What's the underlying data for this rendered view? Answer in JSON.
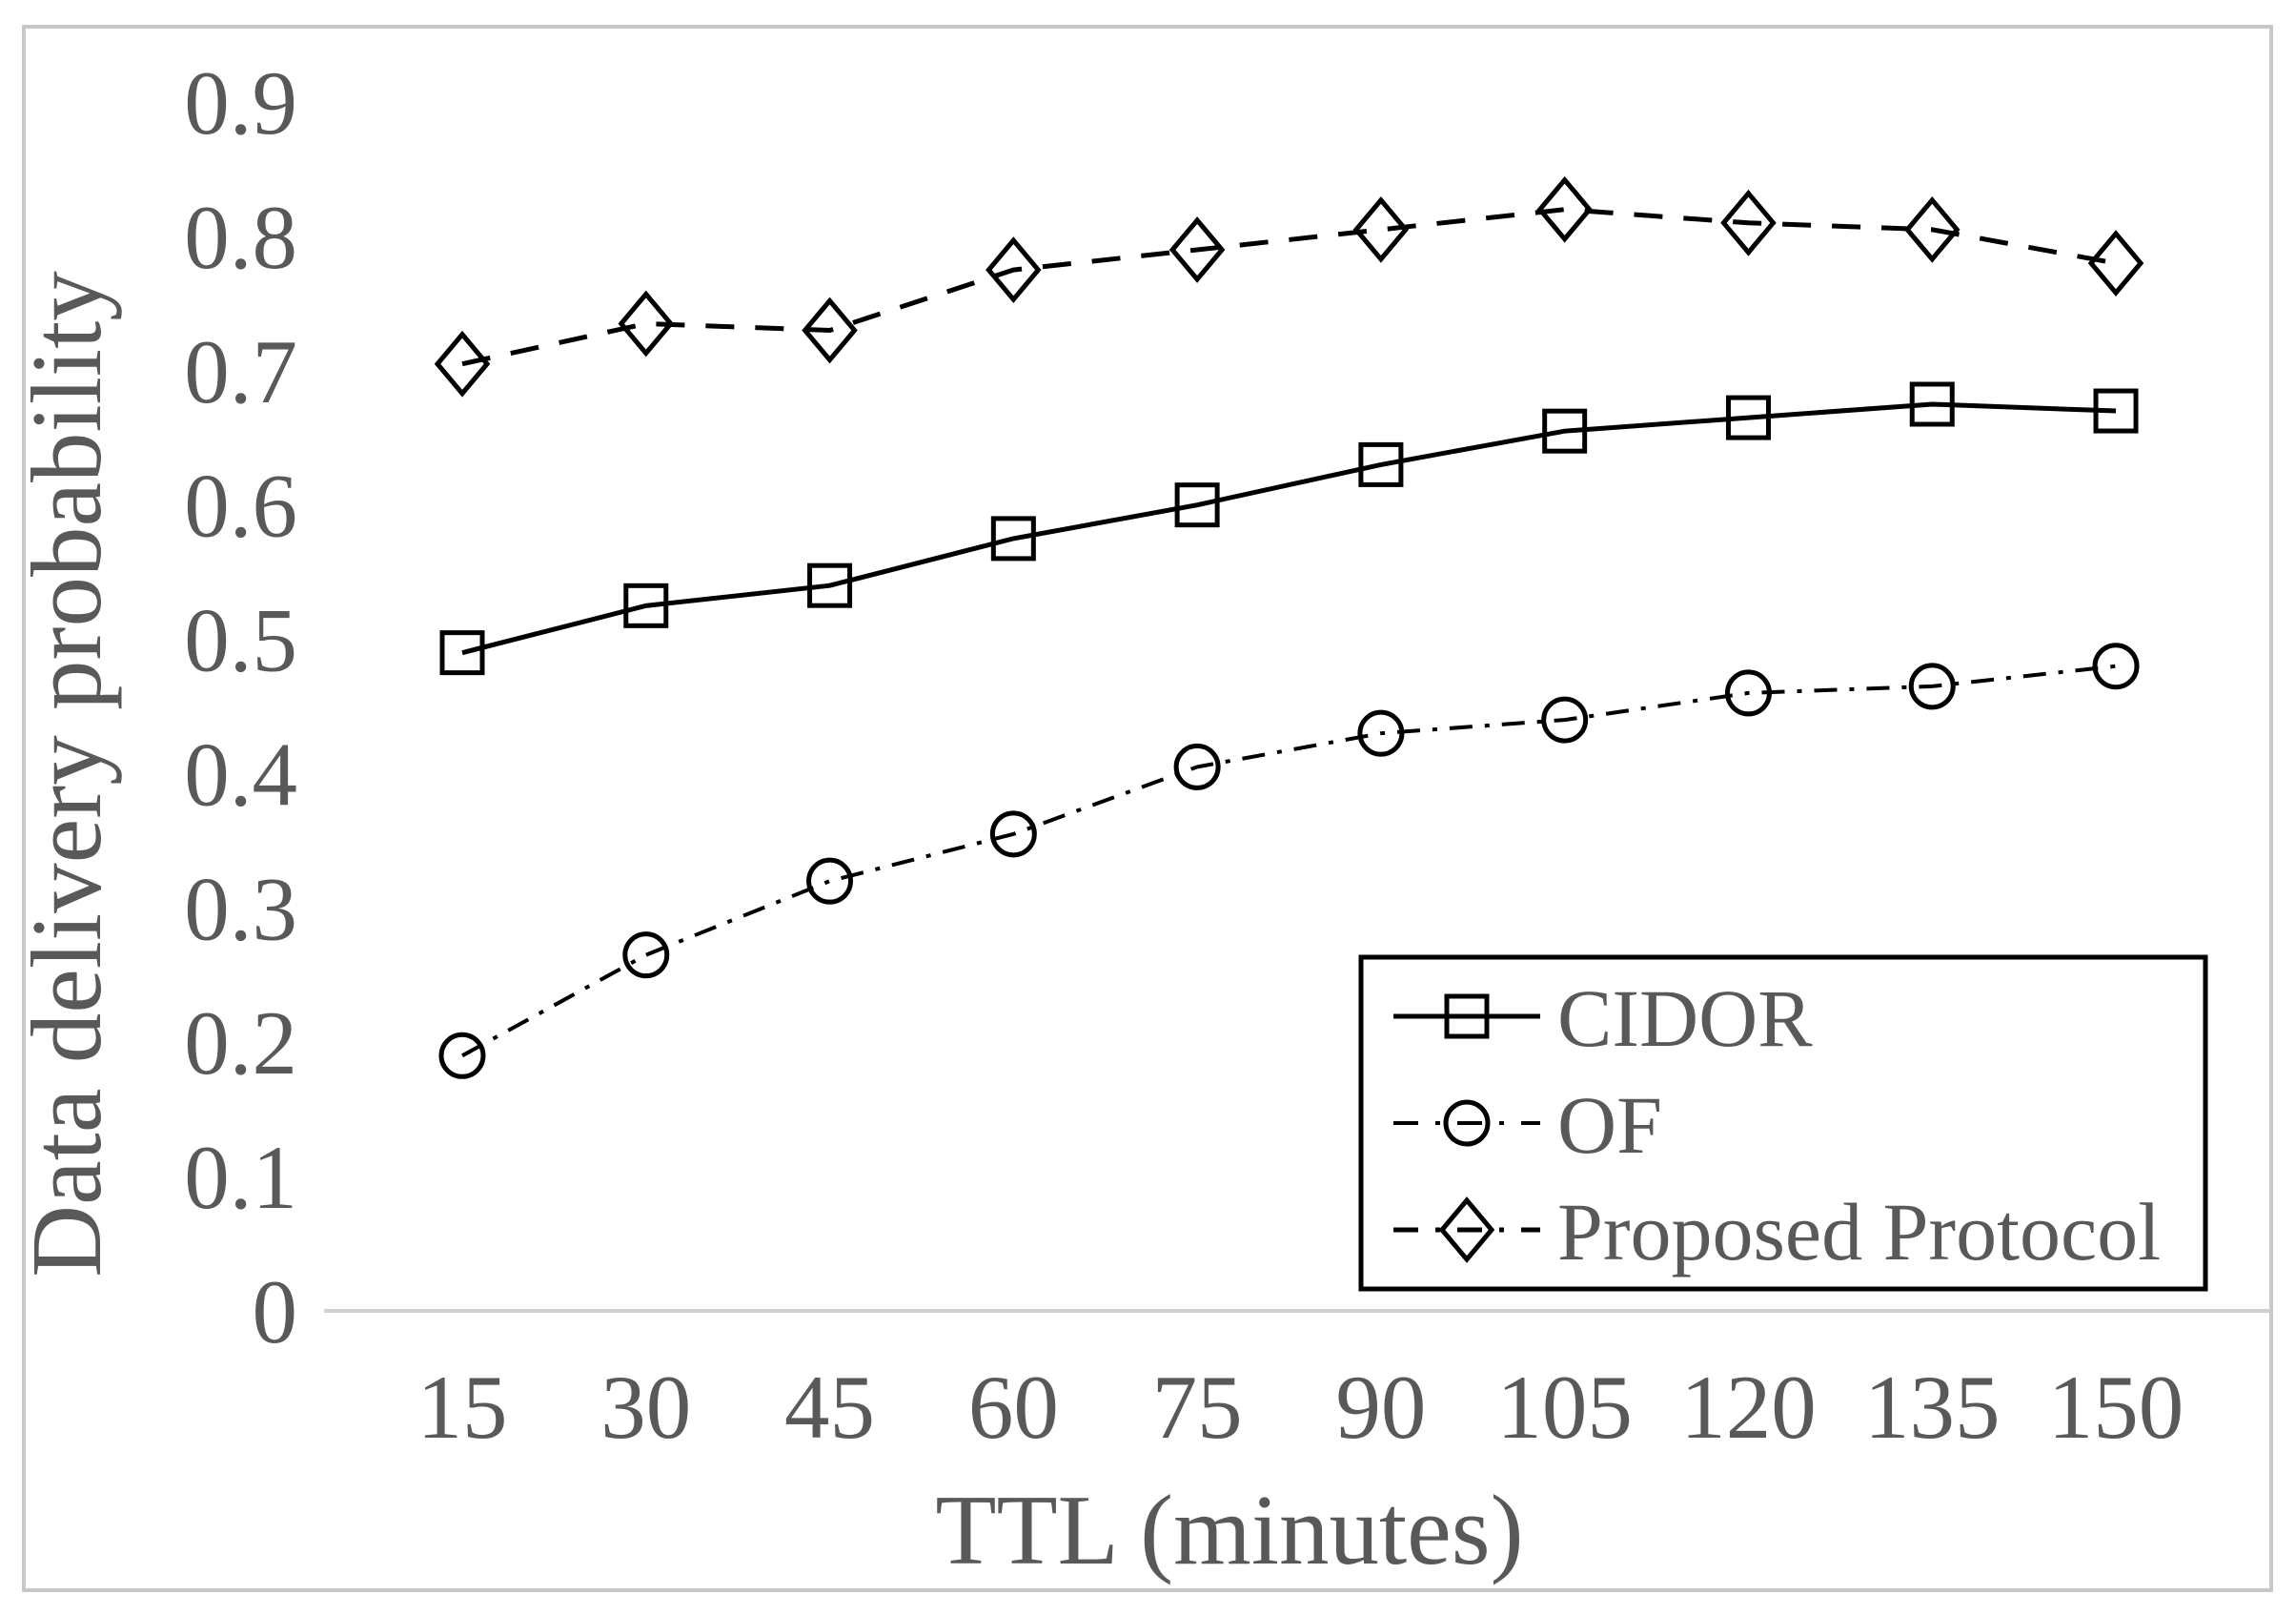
{
  "figure": {
    "background": "#ffffff",
    "border_color": "#c8c8c8"
  },
  "chart_data": {
    "type": "line",
    "title": "",
    "xlabel": "TTL (minutes)",
    "ylabel": "Data delivery probability",
    "categories": [
      15,
      30,
      45,
      60,
      75,
      90,
      105,
      120,
      135,
      150
    ],
    "x_tick_labels": [
      "15",
      "30",
      "45",
      "60",
      "75",
      "90",
      "105",
      "120",
      "135",
      "150"
    ],
    "y_tick_labels": [
      "0",
      "0.1",
      "0.2",
      "0.3",
      "0.4",
      "0.5",
      "0.6",
      "0.7",
      "0.8",
      "0.9"
    ],
    "ylim": [
      0,
      0.9
    ],
    "ytick_step": 0.1,
    "grid": false,
    "legend_position": "inside-lower-right",
    "series": [
      {
        "name": "CIDOR",
        "marker": "square",
        "line_style": "solid",
        "values": [
          0.49,
          0.525,
          0.54,
          0.575,
          0.6,
          0.63,
          0.655,
          0.665,
          0.675,
          0.67
        ]
      },
      {
        "name": "OF",
        "marker": "circle",
        "line_style": "dashdot",
        "values": [
          0.19,
          0.265,
          0.32,
          0.355,
          0.405,
          0.43,
          0.44,
          0.46,
          0.465,
          0.48
        ]
      },
      {
        "name": "Proposed Protocol",
        "marker": "diamond",
        "line_style": "dashed",
        "values": [
          0.705,
          0.735,
          0.73,
          0.775,
          0.79,
          0.805,
          0.82,
          0.81,
          0.805,
          0.78
        ]
      }
    ],
    "colors": {
      "series_stroke": "#000000",
      "text": "#595959",
      "axis_line": "#d0d0d0",
      "legend_border": "#000000",
      "legend_fill": "#ffffff"
    }
  }
}
